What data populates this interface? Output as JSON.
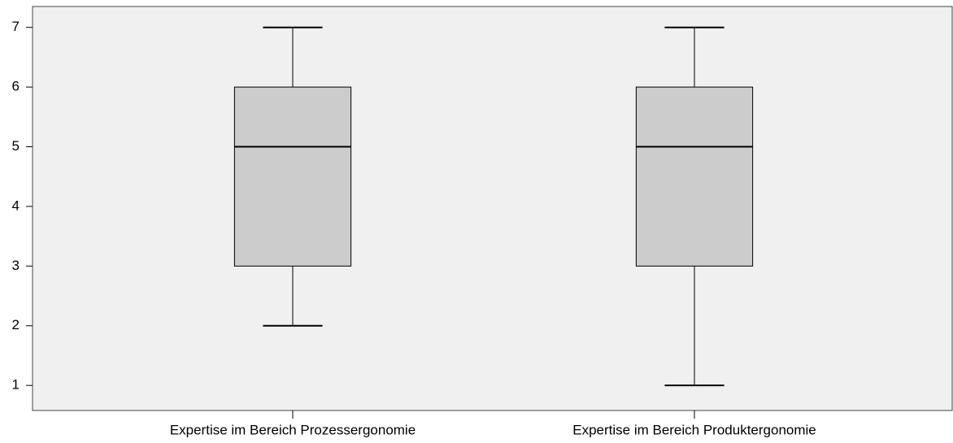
{
  "chart_data": {
    "type": "box",
    "categories": [
      "Expertise im Bereich Prozessergonomie",
      "Expertise im Bereich Produktergonomie"
    ],
    "boxes": [
      {
        "min": 2,
        "q1": 3,
        "median": 5,
        "q3": 6,
        "max": 7
      },
      {
        "min": 1,
        "q1": 3,
        "median": 5,
        "q3": 6,
        "max": 7
      }
    ],
    "color": "#cccccc",
    "ylim": [
      0.58,
      7.35
    ],
    "yticks": [
      1,
      2,
      3,
      4,
      5,
      6,
      7
    ],
    "grid": false
  }
}
